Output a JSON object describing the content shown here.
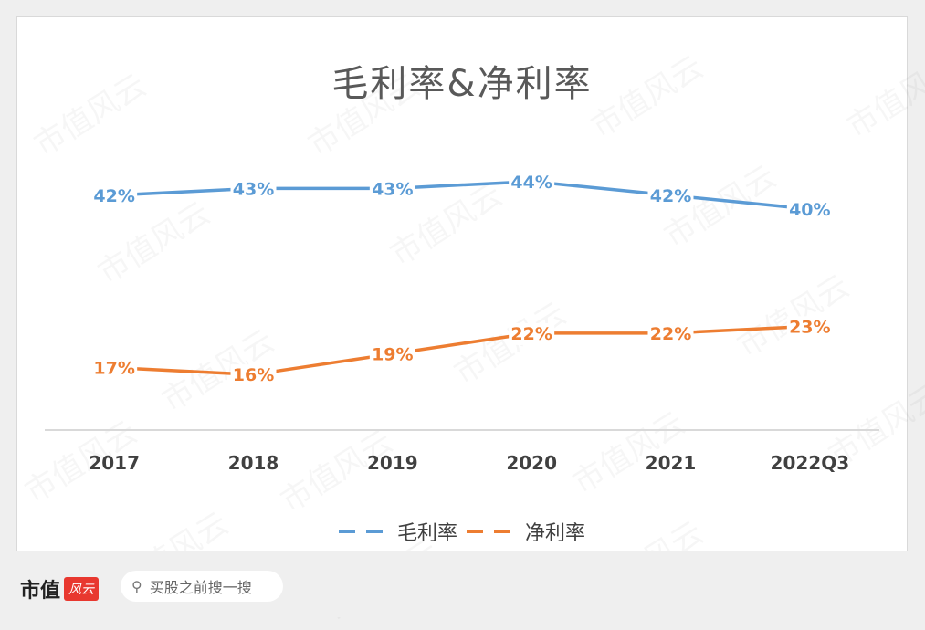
{
  "chart_data": {
    "type": "line",
    "title": "毛利率&净利率",
    "categories": [
      "2017",
      "2018",
      "2019",
      "2020",
      "2021",
      "2022Q3"
    ],
    "series": [
      {
        "name": "毛利率",
        "color": "#5b9bd5",
        "values": [
          42,
          43,
          43,
          44,
          42,
          40
        ],
        "labels": [
          "42%",
          "43%",
          "43%",
          "44%",
          "42%",
          "40%"
        ]
      },
      {
        "name": "净利率",
        "color": "#ed7d31",
        "values": [
          17,
          16,
          19,
          22,
          22,
          23
        ],
        "labels": [
          "17%",
          "16%",
          "19%",
          "22%",
          "22%",
          "23%"
        ]
      }
    ],
    "xlabel": "",
    "ylabel": "",
    "ylim": [
      0,
      50
    ],
    "grid": false,
    "legend": "bottom"
  },
  "watermark": "市值风云",
  "footer": {
    "brand": "市值",
    "brand_badge": "风云",
    "search_icon": "search-icon",
    "search_placeholder": "买股之前搜一搜"
  }
}
